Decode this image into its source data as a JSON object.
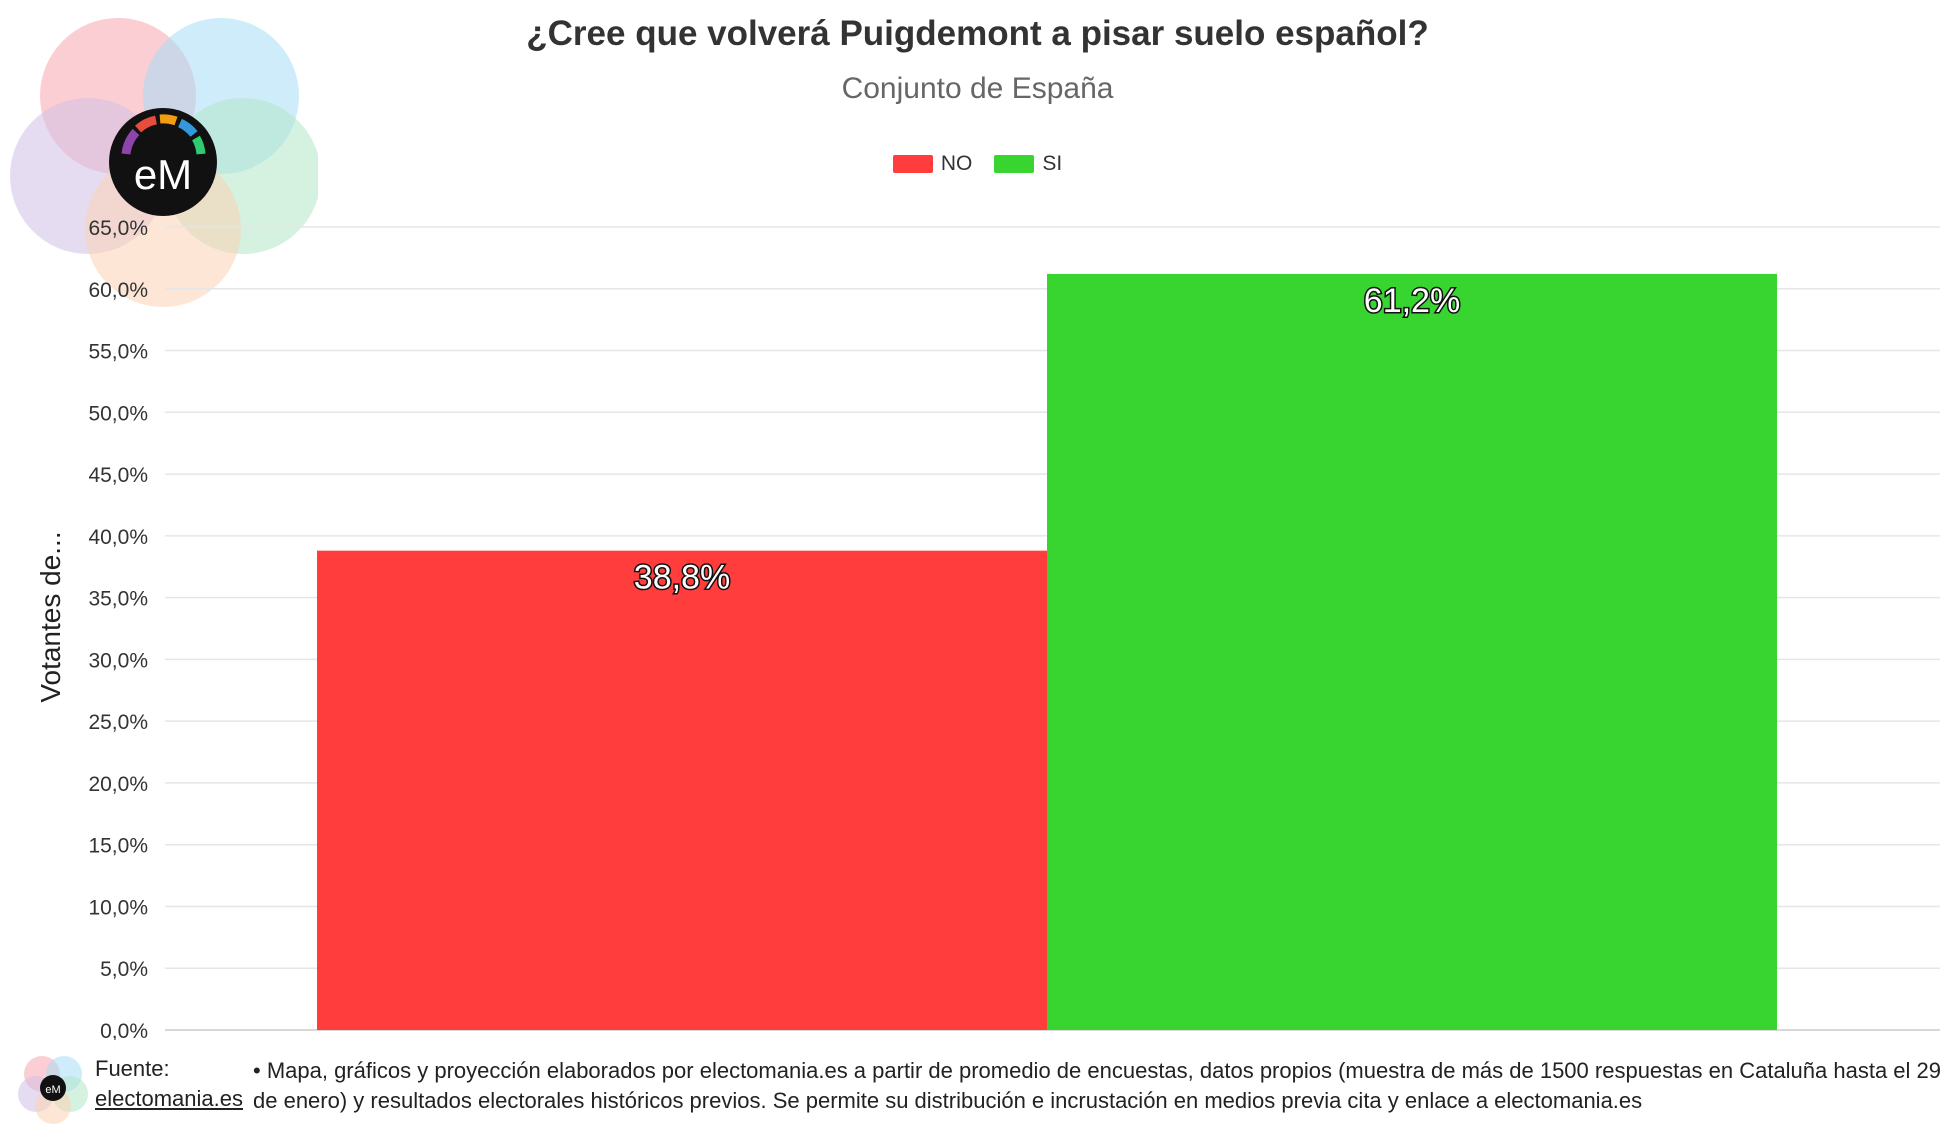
{
  "title": "¿Cree que volverá Puigdemont a pisar suelo español?",
  "subtitle": "Conjunto de España",
  "logo_text": "eM",
  "chart_data": {
    "type": "bar",
    "title": "¿Cree que volverá Puigdemont a pisar suelo español?",
    "subtitle": "Conjunto de España",
    "ylabel": "Votantes de...",
    "xlabel": "",
    "ylim": [
      0,
      65
    ],
    "y_ticks": [
      "0,0%",
      "5,0%",
      "10,0%",
      "15,0%",
      "20,0%",
      "25,0%",
      "30,0%",
      "35,0%",
      "40,0%",
      "45,0%",
      "50,0%",
      "55,0%",
      "60,0%",
      "65,0%"
    ],
    "grid": true,
    "legend_position": "top-center",
    "series": [
      {
        "name": "NO",
        "values": [
          38.8
        ],
        "label": "38,8%",
        "color": "#ff3d3d"
      },
      {
        "name": "SI",
        "values": [
          61.2
        ],
        "label": "61,2%",
        "color": "#38d430"
      }
    ]
  },
  "footer": {
    "source_label": "Fuente:",
    "source_link": "electomania.es",
    "text": "• Mapa, gráficos y proyección elaborados por electomania.es a partir de promedio de encuestas, datos propios (muestra de más de 1500 respuestas en Cataluña hasta el 29 de enero) y resultados electorales históricos previos. Se permite su distribución e incrustación en medios previa cita y enlace a electomania.es"
  }
}
